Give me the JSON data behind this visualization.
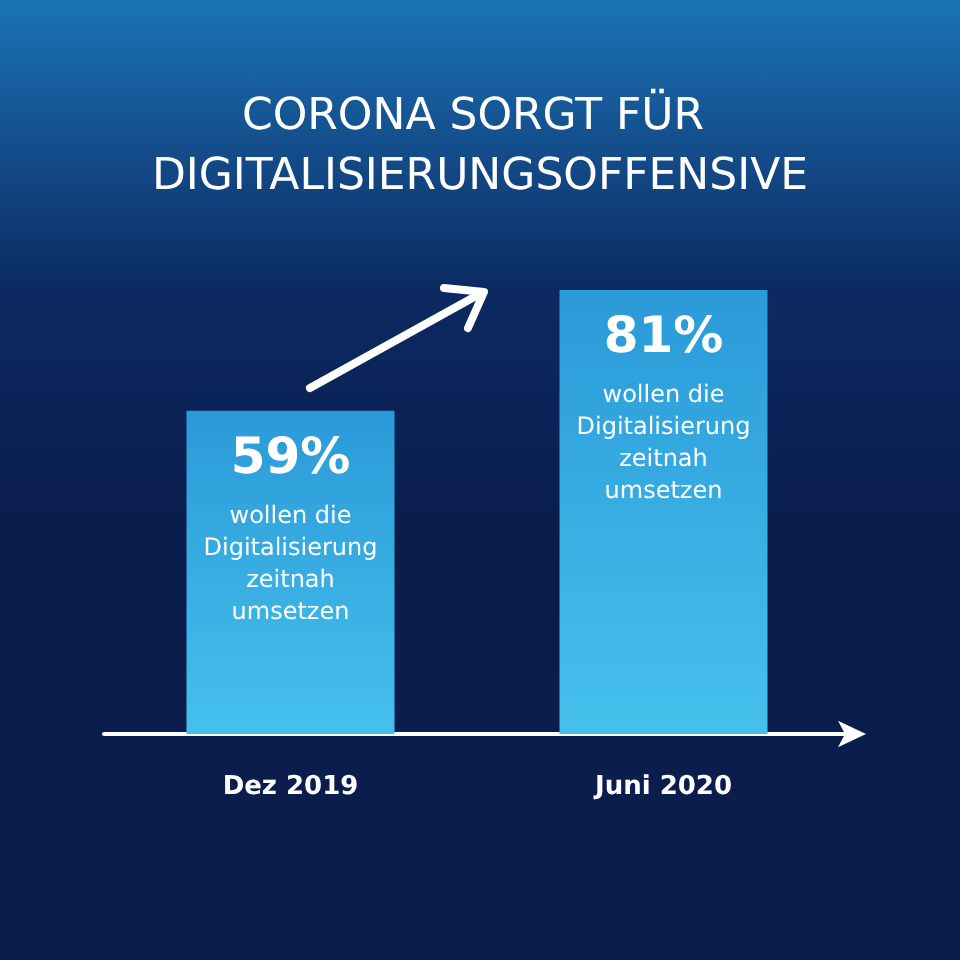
{
  "chart_data": {
    "type": "bar",
    "title": "CORONA SORGT FÜR DIGITALISIERUNGSOFFENSIVE",
    "categories": [
      "Dez 2019",
      "Juni 2020"
    ],
    "values": [
      59,
      81
    ],
    "color": "#2a9ad8",
    "value_labels": [
      "59%",
      "81%"
    ],
    "annotations": [
      "wollen die Digitalisierung zeitnah umsetzen",
      "wollen die Digitalisierung zeitnah umsetzen"
    ],
    "grid": false
  }
}
